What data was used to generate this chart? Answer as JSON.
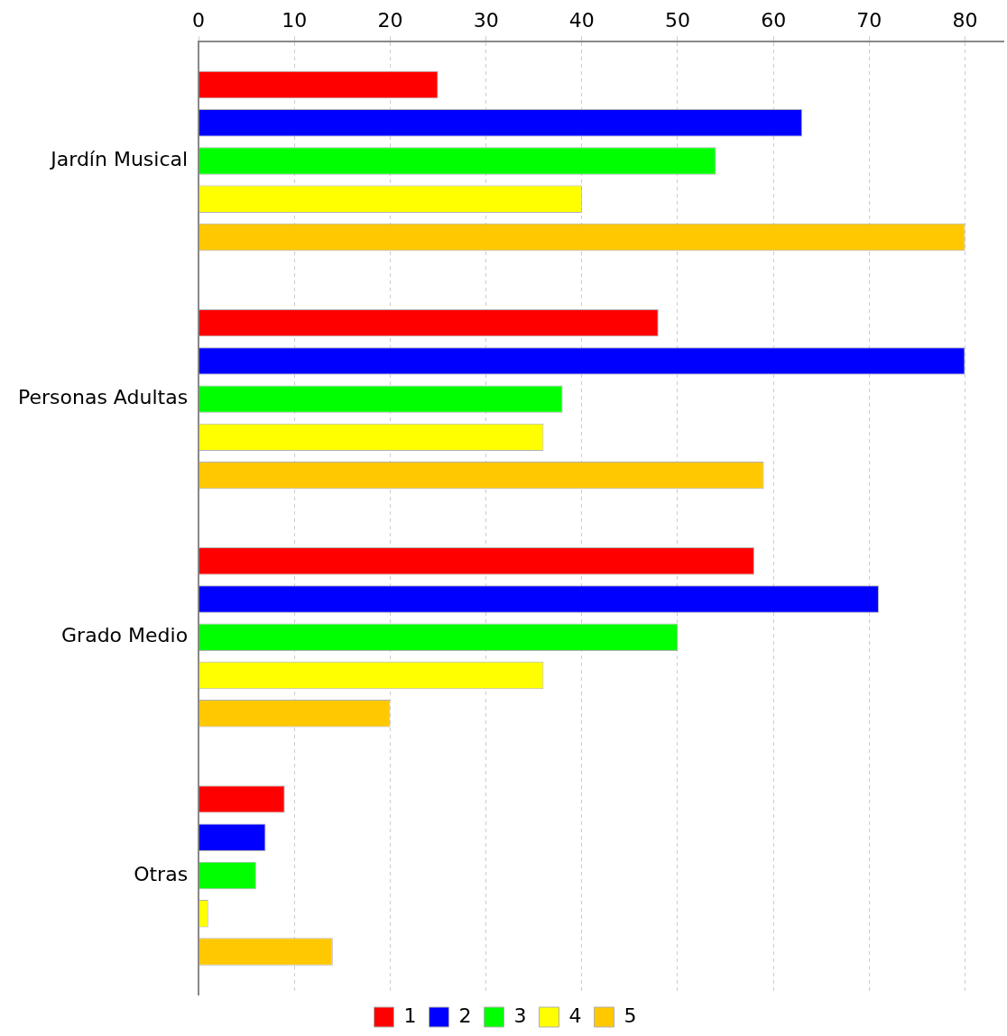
{
  "chart_data": {
    "type": "bar",
    "orientation": "horizontal",
    "categories": [
      "Jardín Musical",
      "Personas Adultas",
      "Grado Medio",
      "Otras"
    ],
    "series": [
      {
        "name": "1",
        "color": "#ff0000",
        "values": [
          25,
          48,
          58,
          9
        ]
      },
      {
        "name": "2",
        "color": "#0000ff",
        "values": [
          63,
          80,
          71,
          7
        ]
      },
      {
        "name": "3",
        "color": "#00ff00",
        "values": [
          54,
          38,
          50,
          6
        ]
      },
      {
        "name": "4",
        "color": "#ffff00",
        "values": [
          40,
          36,
          36,
          1
        ]
      },
      {
        "name": "5",
        "color": "#ffc800",
        "values": [
          80,
          59,
          20,
          14
        ]
      }
    ],
    "xlim": [
      0,
      84
    ],
    "xticks": [
      0,
      10,
      20,
      30,
      40,
      50,
      60,
      70,
      80
    ],
    "grid": "x",
    "legend": "bottom"
  }
}
